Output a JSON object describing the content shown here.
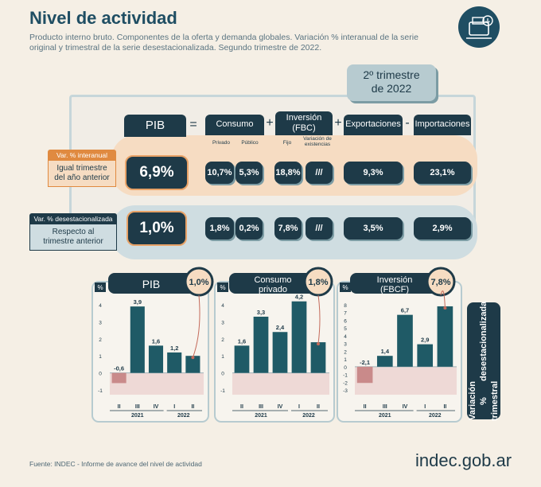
{
  "header": {
    "title": "Nivel de actividad",
    "subtitle": "Producto interno bruto. Componentes de la oferta y demanda globales. Variación % interanual de la serie original y trimestral de la serie desestacionalizada. Segundo trimestre de 2022."
  },
  "quarter": {
    "line1": "2º trimestre",
    "line2": "de 2022"
  },
  "table": {
    "pib_label": "PIB",
    "ops": {
      "eq": "=",
      "plus1": "+",
      "plus2": "+",
      "minus": "-"
    },
    "consumo": {
      "label": "Consumo",
      "sub_privado": "Privado",
      "sub_publico": "Público"
    },
    "inversion": {
      "label": "Inversión\n(FBC)",
      "line1": "Inversión",
      "line2": "(FBC)",
      "sub_fijo": "Fijo",
      "sub_var1": "Variación de",
      "sub_var2": "existencias"
    },
    "exportaciones": {
      "label": "Exportaciones"
    },
    "importaciones": {
      "label": "Importaciones"
    },
    "row_interanual": {
      "tag": "Var. % interanual",
      "line1": "Igual trimestre",
      "line2": "del año anterior",
      "pib": "6,9%",
      "privado": "10,7%",
      "publico": "5,3%",
      "fijo": "18,8%",
      "variacion": "///",
      "exportaciones": "9,3%",
      "importaciones": "23,1%"
    },
    "row_desest": {
      "tag": "Var. % desestacionalizada",
      "line1": "Respecto al",
      "line2": "trimestre anterior",
      "pib": "1,0%",
      "privado": "1,8%",
      "publico": "0,2%",
      "fijo": "7,8%",
      "variacion": "///",
      "exportaciones": "3,5%",
      "importaciones": "2,9%"
    }
  },
  "side_label": {
    "line1": "Variación % trimestral",
    "line2": "desestacionalizada"
  },
  "footer": {
    "source": "Fuente: INDEC - Informe de avance del nivel de actividad",
    "brand": "indec.gob.ar"
  },
  "colors": {
    "dark": "#1e3a48",
    "teal": "#1f5a66",
    "negative": "#c98a8a",
    "orange": "#e08a40"
  },
  "chart_data": [
    {
      "type": "bar",
      "title": "PIB",
      "badge": "1,0%",
      "ylabel": "%",
      "categories": [
        "II",
        "III",
        "IV",
        "I",
        "II"
      ],
      "years": [
        "2021",
        "2022"
      ],
      "values": [
        -0.6,
        3.9,
        1.6,
        1.2,
        1.0
      ],
      "labels": [
        "-0,6",
        "3,9",
        "1,6",
        "1,2",
        ""
      ],
      "ylim": [
        -1,
        4
      ],
      "yticks": [
        "-1",
        "0",
        "1",
        "2",
        "3",
        "4"
      ]
    },
    {
      "type": "bar",
      "title": "Consumo privado",
      "title_line1": "Consumo",
      "title_line2": "privado",
      "badge": "1,8%",
      "ylabel": "%",
      "categories": [
        "II",
        "III",
        "IV",
        "I",
        "II"
      ],
      "years": [
        "2021",
        "2022"
      ],
      "values": [
        1.6,
        3.3,
        2.4,
        4.2,
        1.8
      ],
      "labels": [
        "1,6",
        "3,3",
        "2,4",
        "4,2",
        ""
      ],
      "ylim": [
        -1,
        4
      ],
      "yticks": [
        "-1",
        "0",
        "1",
        "2",
        "3",
        "4"
      ]
    },
    {
      "type": "bar",
      "title": "Inversión (FBCF)",
      "title_line1": "Inversión",
      "title_line2": "(FBCF)",
      "badge": "7,8%",
      "ylabel": "%",
      "categories": [
        "II",
        "III",
        "IV",
        "I",
        "II"
      ],
      "years": [
        "2021",
        "2022"
      ],
      "values": [
        -2.1,
        1.4,
        6.7,
        2.9,
        7.8
      ],
      "labels": [
        "-2,1",
        "1,4",
        "6,7",
        "2,9",
        ""
      ],
      "ylim": [
        -3,
        8
      ],
      "yticks": [
        "-3",
        "-2",
        "-1",
        "0",
        "1",
        "2",
        "3",
        "4",
        "5",
        "6",
        "7",
        "8"
      ]
    }
  ]
}
